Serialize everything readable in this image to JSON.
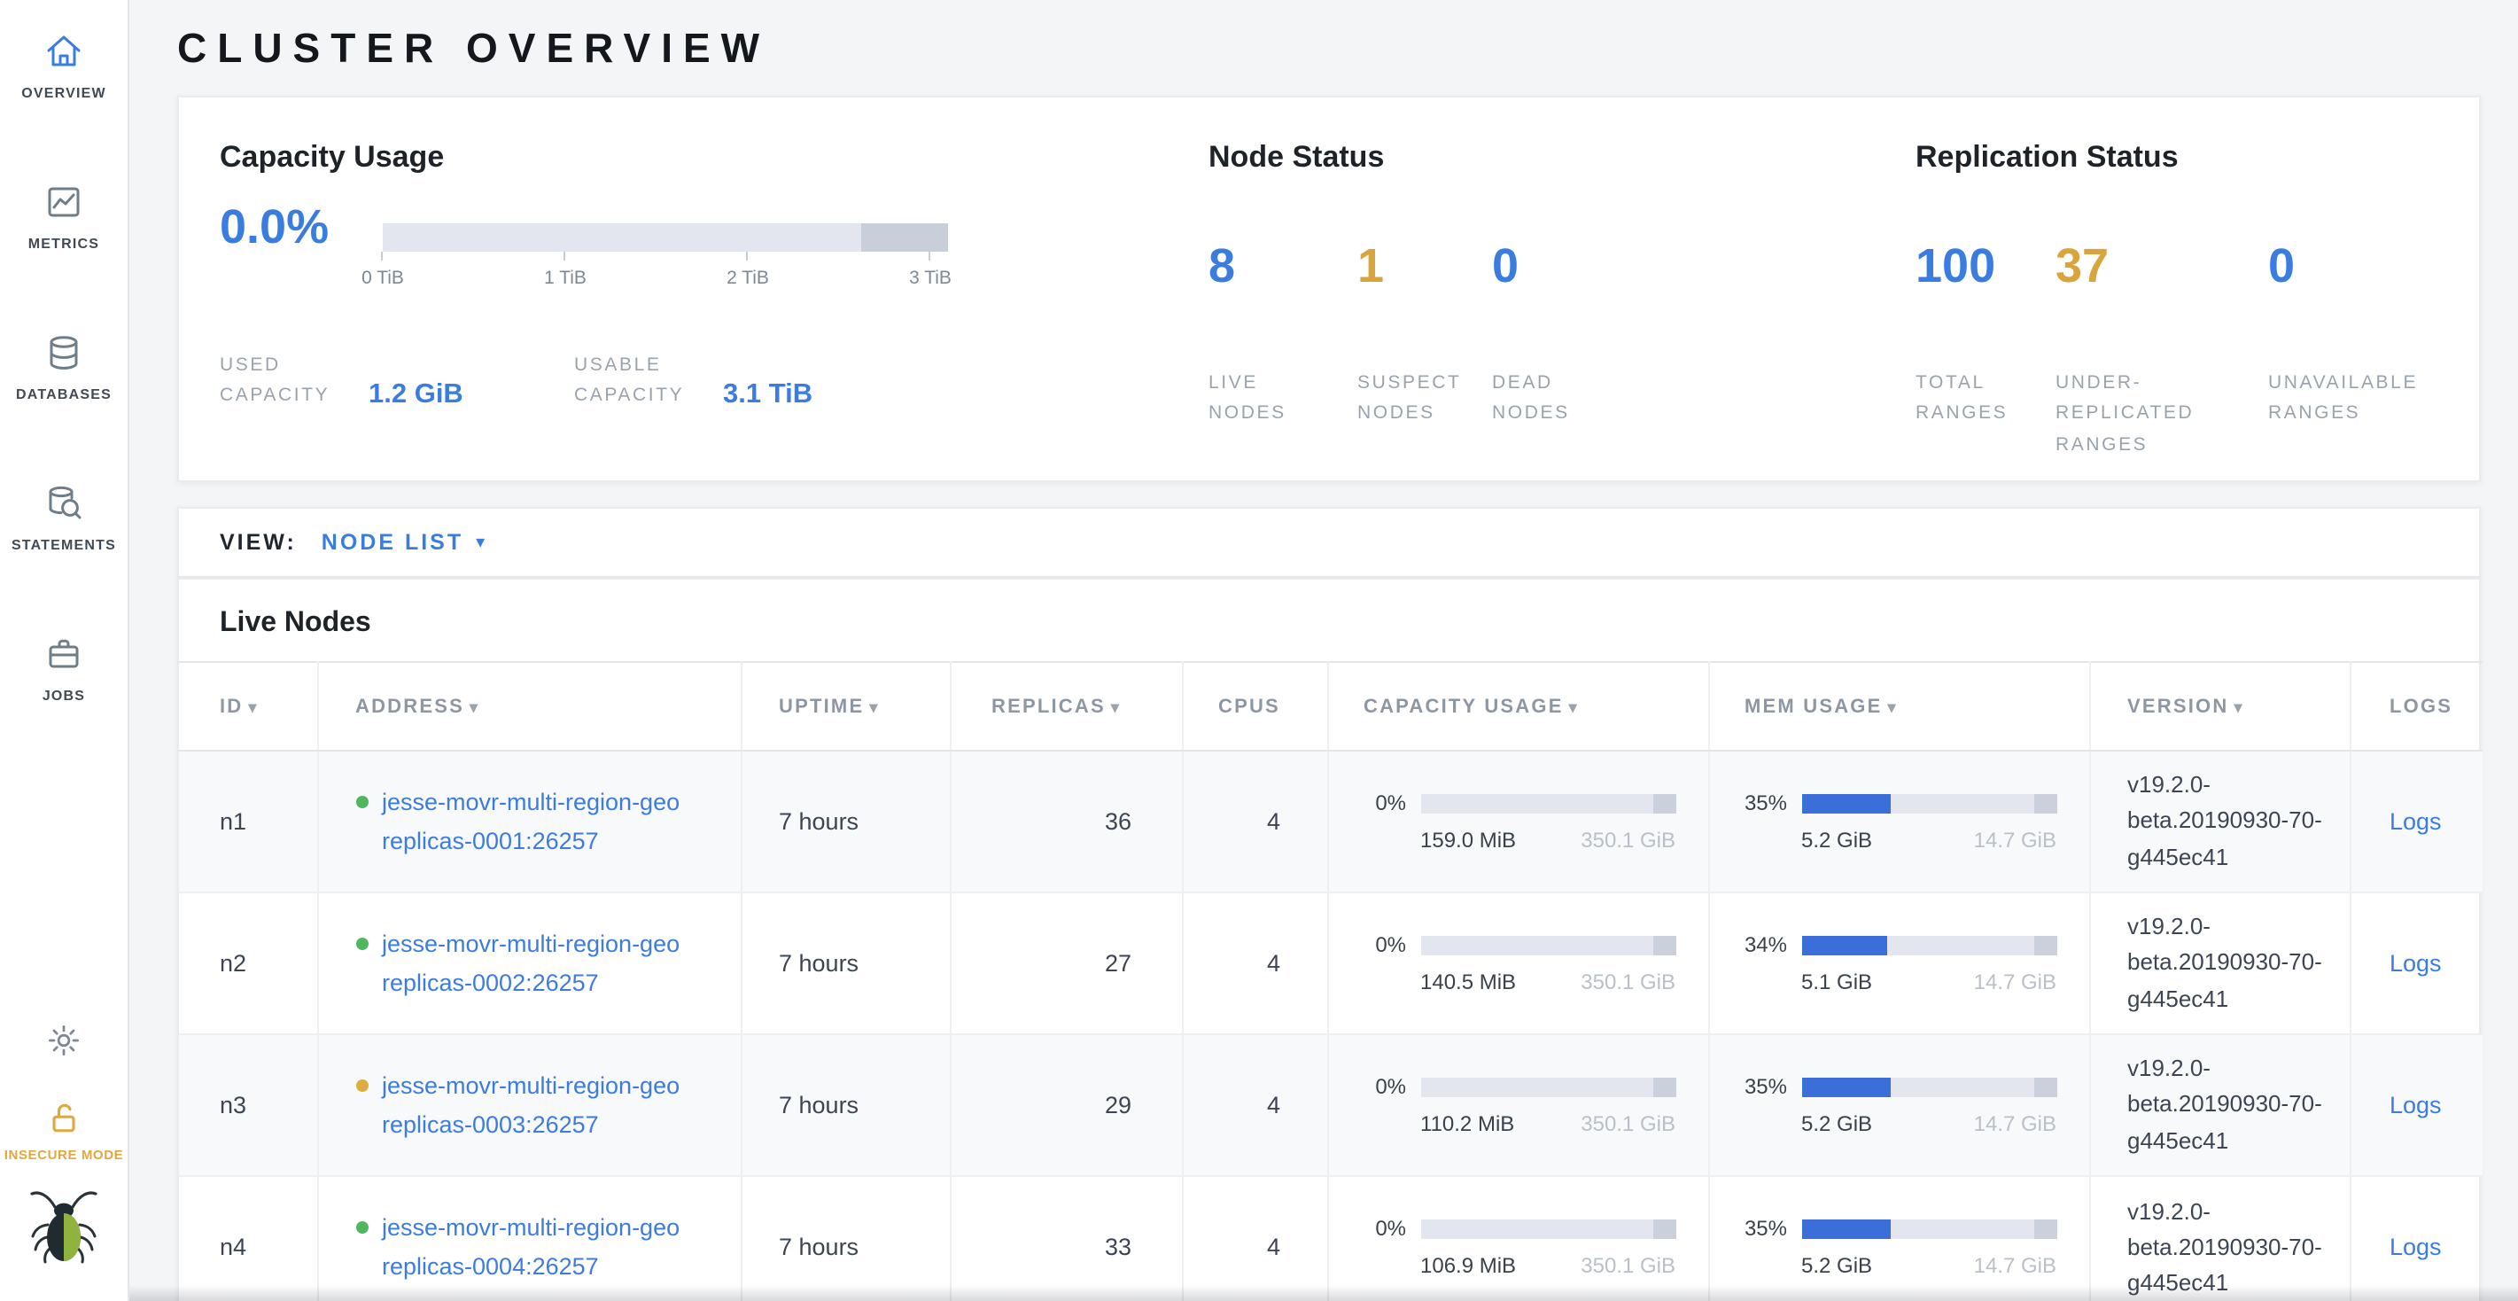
{
  "colors": {
    "accent_blue": "#3a7de1",
    "accent_yellow": "#d9a43c",
    "link_blue": "#3c7ce0",
    "live_dot_green": "#4fb85f",
    "suspect_dot_yellow": "#dcae3d",
    "insecure_yellow": "#e0a83c"
  },
  "sidebar": {
    "items": [
      {
        "label": "OVERVIEW",
        "icon": "home-icon",
        "active": true
      },
      {
        "label": "METRICS",
        "icon": "metrics-icon",
        "active": false
      },
      {
        "label": "DATABASES",
        "icon": "databases-icon",
        "active": false
      },
      {
        "label": "STATEMENTS",
        "icon": "statements-icon",
        "active": false
      },
      {
        "label": "JOBS",
        "icon": "jobs-icon",
        "active": false
      }
    ],
    "insecure_mode_label": "INSECURE MODE"
  },
  "header": {
    "title": "CLUSTER OVERVIEW"
  },
  "summary": {
    "capacity": {
      "title": "Capacity Usage",
      "percent": "0.0%",
      "ticks": [
        "0 TiB",
        "1 TiB",
        "2 TiB",
        "3 TiB"
      ],
      "used_label": "USED CAPACITY",
      "used_value": "1.2 GiB",
      "usable_label": "USABLE CAPACITY",
      "usable_value": "3.1 TiB"
    },
    "node_status": {
      "title": "Node Status",
      "stats": [
        {
          "value": "8",
          "label": "LIVE NODES",
          "color": "blue"
        },
        {
          "value": "1",
          "label": "SUSPECT NODES",
          "color": "yellow"
        },
        {
          "value": "0",
          "label": "DEAD NODES",
          "color": "blue"
        }
      ]
    },
    "replication": {
      "title": "Replication Status",
      "stats": [
        {
          "value": "100",
          "label": "TOTAL RANGES",
          "color": "blue"
        },
        {
          "value": "37",
          "label": "UNDER-REPLICATED RANGES",
          "color": "yellow"
        },
        {
          "value": "0",
          "label": "UNAVAILABLE RANGES",
          "color": "blue"
        }
      ]
    }
  },
  "view_bar": {
    "label": "VIEW:",
    "selected": "NODE LIST",
    "caret": "▾"
  },
  "table": {
    "title": "Live Nodes",
    "sort_glyph": "▾",
    "columns": [
      {
        "label": "ID",
        "sortable": true
      },
      {
        "label": "ADDRESS",
        "sortable": true
      },
      {
        "label": "UPTIME",
        "sortable": true
      },
      {
        "label": "REPLICAS",
        "sortable": true
      },
      {
        "label": "CPUS",
        "sortable": false
      },
      {
        "label": "CAPACITY USAGE",
        "sortable": true
      },
      {
        "label": "MEM USAGE",
        "sortable": true
      },
      {
        "label": "VERSION",
        "sortable": true
      },
      {
        "label": "LOGS",
        "sortable": false
      }
    ],
    "rows": [
      {
        "id": "n1",
        "status": "green",
        "address_line1": "jesse-movr-multi-region-geo",
        "address_line2": "replicas-0001:26257",
        "uptime": "7 hours",
        "replicas": "36",
        "cpus": "4",
        "capacity_percent": "0%",
        "capacity_used": "159.0 MiB",
        "capacity_total": "350.1 GiB",
        "mem_percent": "35%",
        "mem_used": "5.2 GiB",
        "mem_total": "14.7 GiB",
        "version": "v19.2.0-beta.20190930-70-g445ec41",
        "logs": "Logs"
      },
      {
        "id": "n2",
        "status": "green",
        "address_line1": "jesse-movr-multi-region-geo",
        "address_line2": "replicas-0002:26257",
        "uptime": "7 hours",
        "replicas": "27",
        "cpus": "4",
        "capacity_percent": "0%",
        "capacity_used": "140.5 MiB",
        "capacity_total": "350.1 GiB",
        "mem_percent": "34%",
        "mem_used": "5.1 GiB",
        "mem_total": "14.7 GiB",
        "version": "v19.2.0-beta.20190930-70-g445ec41",
        "logs": "Logs"
      },
      {
        "id": "n3",
        "status": "yellow",
        "address_line1": "jesse-movr-multi-region-geo",
        "address_line2": "replicas-0003:26257",
        "uptime": "7 hours",
        "replicas": "29",
        "cpus": "4",
        "capacity_percent": "0%",
        "capacity_used": "110.2 MiB",
        "capacity_total": "350.1 GiB",
        "mem_percent": "35%",
        "mem_used": "5.2 GiB",
        "mem_total": "14.7 GiB",
        "version": "v19.2.0-beta.20190930-70-g445ec41",
        "logs": "Logs"
      },
      {
        "id": "n4",
        "status": "green",
        "address_line1": "jesse-movr-multi-region-geo",
        "address_line2": "replicas-0004:26257",
        "uptime": "7 hours",
        "replicas": "33",
        "cpus": "4",
        "capacity_percent": "0%",
        "capacity_used": "106.9 MiB",
        "capacity_total": "350.1 GiB",
        "mem_percent": "35%",
        "mem_used": "5.2 GiB",
        "mem_total": "14.7 GiB",
        "version": "v19.2.0-beta.20190930-70-g445ec41",
        "logs": "Logs"
      }
    ]
  }
}
